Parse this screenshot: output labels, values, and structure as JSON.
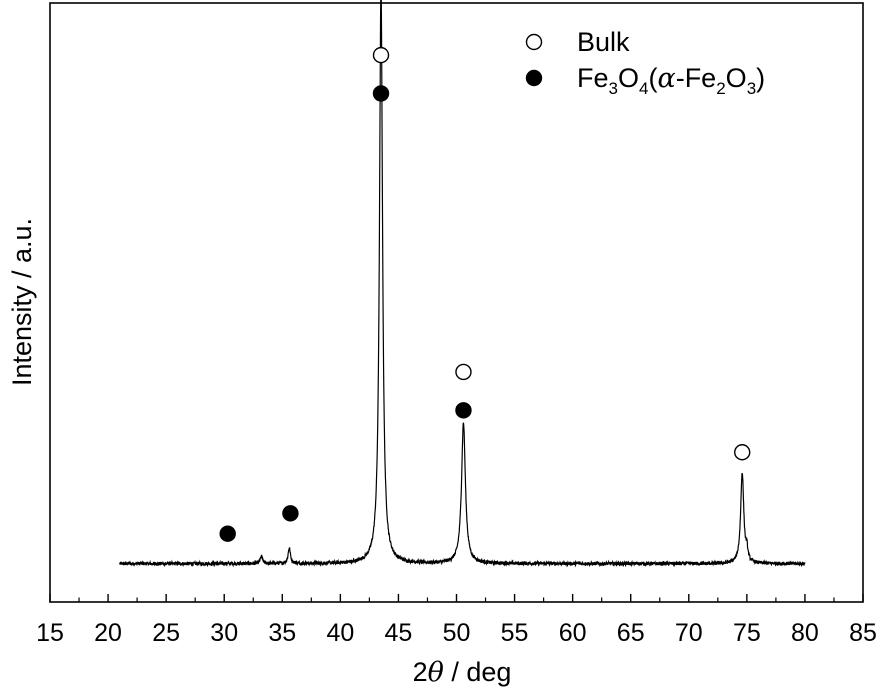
{
  "chart_data": {
    "type": "line",
    "xlabel_parts": {
      "prefix": "2",
      "theta": "θ",
      "suffix": " / deg"
    },
    "ylabel": "Intensity / a.u.",
    "xlim": [
      15,
      85
    ],
    "ylim": [
      0,
      1
    ],
    "xticks": [
      "15",
      "20",
      "25",
      "30",
      "35",
      "40",
      "45",
      "50",
      "55",
      "60",
      "65",
      "70",
      "75",
      "80",
      "85"
    ],
    "yticks_shown": false,
    "pattern": {
      "x_start": 21,
      "x_end": 80,
      "baseline": 0.064,
      "peaks": [
        {
          "x": 33.2,
          "height": 0.012,
          "width": 0.12
        },
        {
          "x": 35.6,
          "height": 0.026,
          "width": 0.12
        },
        {
          "x": 43.5,
          "height": 0.96,
          "width": 0.16
        },
        {
          "x": 50.6,
          "height": 0.235,
          "width": 0.2
        },
        {
          "x": 74.6,
          "height": 0.152,
          "width": 0.16
        },
        {
          "x": 75.0,
          "height": 0.018,
          "width": 0.1
        }
      ]
    },
    "markers": [
      {
        "x": 30.3,
        "y": 0.114,
        "type": "filled"
      },
      {
        "x": 35.7,
        "y": 0.148,
        "type": "filled"
      },
      {
        "x": 43.5,
        "y": 0.913,
        "type": "open"
      },
      {
        "x": 43.5,
        "y": 0.849,
        "type": "filled"
      },
      {
        "x": 50.6,
        "y": 0.384,
        "type": "open"
      },
      {
        "x": 50.6,
        "y": 0.32,
        "type": "filled"
      },
      {
        "x": 74.6,
        "y": 0.25,
        "type": "open"
      }
    ],
    "legend": {
      "position": "top-right",
      "entries": [
        {
          "marker": "open",
          "label": "Bulk"
        },
        {
          "marker": "filled",
          "label_parts": {
            "fe": "Fe",
            "s3": "3",
            "o": "O",
            "s4": "4",
            "paren_open": "(",
            "alpha": "α",
            "dash_fe": "-Fe",
            "s2": "2",
            "o2": "O",
            "s3b": "3",
            "paren_close": ")"
          }
        }
      ]
    }
  }
}
